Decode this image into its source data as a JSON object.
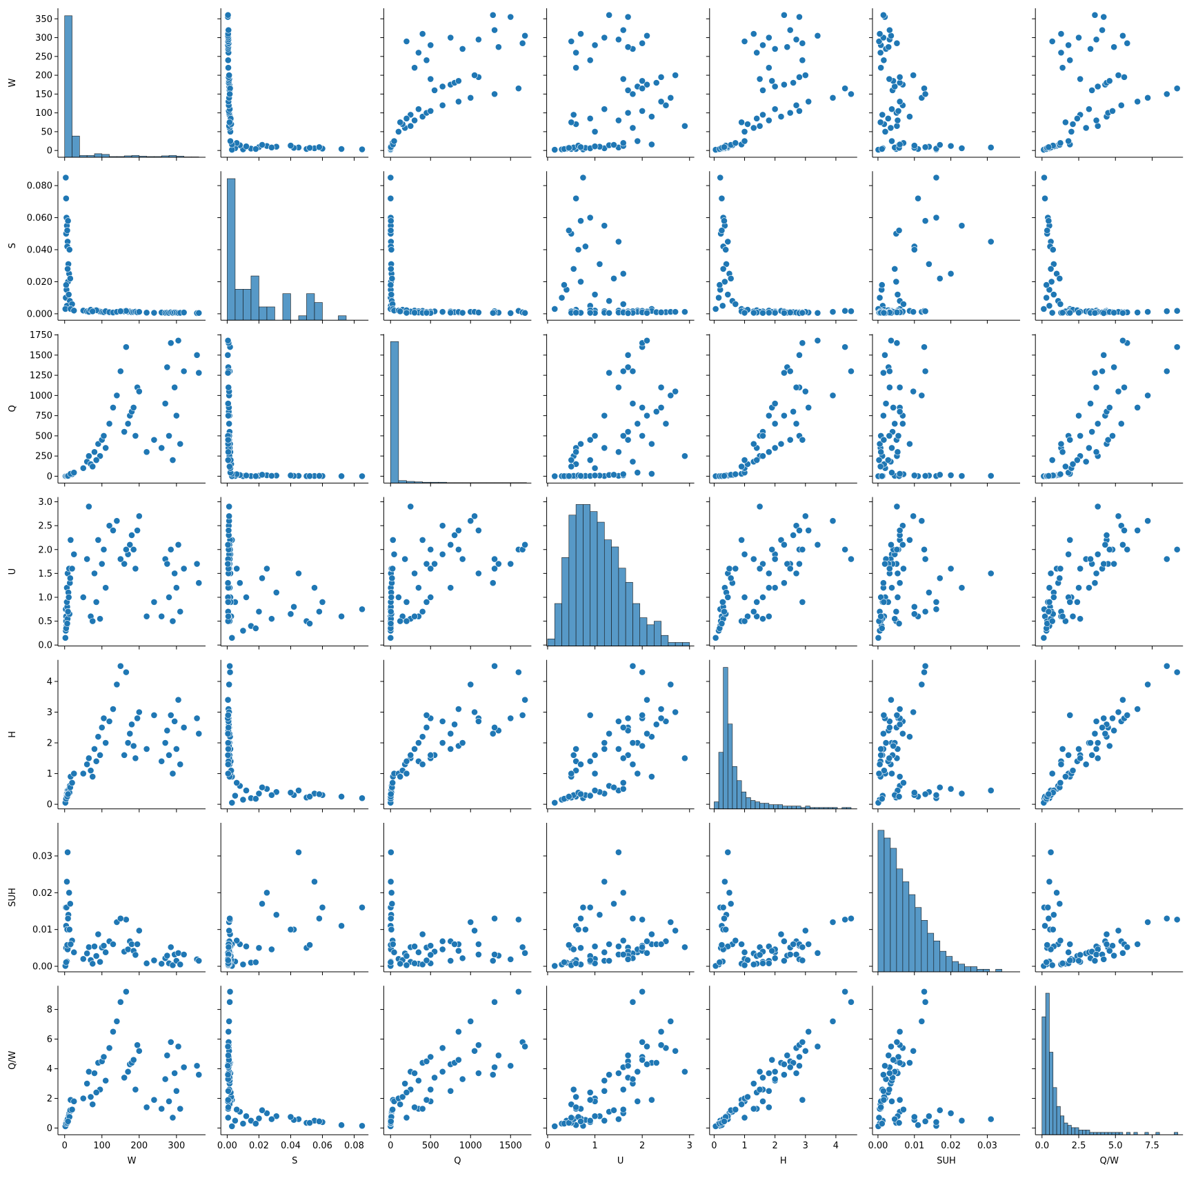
{
  "chart_data": {
    "type": "pairplot",
    "color": "#1f77b4",
    "variables": [
      {
        "name": "W",
        "lim": [
          -18,
          378
        ],
        "xticks": [
          0,
          100,
          200,
          300
        ],
        "yticks": [
          0,
          50,
          100,
          150,
          200,
          250,
          300,
          350
        ],
        "hist": {
          "bins": [
            0,
            20,
            40,
            60,
            80,
            100,
            120,
            140,
            160,
            180,
            200,
            220,
            240,
            260,
            280,
            300,
            320,
            340,
            360
          ],
          "counts": [
            400,
            60,
            5,
            5,
            10,
            8,
            2,
            2,
            4,
            5,
            3,
            2,
            2,
            4,
            5,
            3,
            1,
            1
          ]
        }
      },
      {
        "name": "S",
        "lim": [
          -0.004,
          0.089
        ],
        "xticks": [
          {
            "value": 0,
            "label": "0.00"
          },
          0.02,
          0.04,
          0.06,
          0.08
        ],
        "yticks": [
          {
            "value": 0,
            "label": "0.000"
          },
          {
            "value": 0.02,
            "label": "0.020"
          },
          {
            "value": 0.04,
            "label": "0.040"
          },
          {
            "value": 0.06,
            "label": "0.060"
          },
          {
            "value": 0.08,
            "label": "0.080"
          }
        ],
        "hist": {
          "bins": [
            0,
            0.005,
            0.01,
            0.015,
            0.02,
            0.025,
            0.03,
            0.035,
            0.04,
            0.045,
            0.05,
            0.055,
            0.06,
            0.065,
            0.07,
            0.075
          ],
          "counts": [
            32,
            7,
            7,
            10,
            3,
            3,
            0,
            6,
            0,
            1,
            6,
            4,
            0,
            0,
            1
          ]
        }
      },
      {
        "name": "Q",
        "lim": [
          -85,
          1760
        ],
        "xticks": [
          0,
          500,
          1000,
          1500
        ],
        "yticks": [
          0,
          250,
          500,
          750,
          1000,
          1250,
          1500,
          1750
        ],
        "hist": {
          "bins": [
            0,
            100,
            200,
            300,
            400,
            500,
            600,
            700,
            800,
            900,
            1000,
            1100,
            1200,
            1300,
            1400,
            1500,
            1600,
            1700
          ],
          "counts": [
            340,
            6,
            4,
            3,
            2,
            2,
            2,
            1,
            1,
            1,
            1,
            1,
            1,
            1,
            1,
            1,
            1
          ]
        }
      },
      {
        "name": "U",
        "lim": [
          -0.02,
          3.1
        ],
        "xticks": [
          0,
          1,
          2,
          3
        ],
        "yticks": [
          {
            "value": 0,
            "label": "0.0"
          },
          0.5,
          {
            "value": 1,
            "label": "1.0"
          },
          1.5,
          {
            "value": 2,
            "label": "2.0"
          },
          2.5,
          {
            "value": 3,
            "label": "3.0"
          }
        ],
        "hist": {
          "bins": [
            0,
            0.15,
            0.3,
            0.45,
            0.6,
            0.75,
            0.9,
            1.05,
            1.2,
            1.35,
            1.5,
            1.65,
            1.8,
            1.95,
            2.1,
            2.25,
            2.4,
            2.55,
            2.7,
            2.85,
            3
          ],
          "counts": [
            2,
            12,
            25,
            37,
            40,
            40,
            38,
            35,
            30,
            28,
            22,
            18,
            12,
            8,
            6,
            7,
            3,
            1,
            1,
            1
          ]
        }
      },
      {
        "name": "H",
        "lim": [
          -0.15,
          4.7
        ],
        "xticks": [
          0,
          1,
          2,
          3,
          4
        ],
        "yticks": [
          0,
          1,
          2,
          3,
          4
        ],
        "hist": {
          "bins": [
            0,
            0.15,
            0.3,
            0.45,
            0.6,
            0.75,
            0.9,
            1.05,
            1.2,
            1.35,
            1.5,
            1.65,
            1.8,
            1.95,
            2.1,
            2.25,
            2.4,
            2.55,
            2.7,
            2.85,
            3,
            3.15,
            3.3,
            3.45,
            3.6,
            3.75,
            3.9,
            4.05,
            4.2,
            4.35,
            4.5
          ],
          "counts": [
            5,
            40,
            100,
            60,
            30,
            20,
            12,
            8,
            6,
            5,
            4,
            4,
            3,
            3,
            3,
            2,
            2,
            2,
            2,
            1,
            2,
            1,
            1,
            1,
            1,
            1,
            1,
            0,
            1,
            1
          ]
        }
      },
      {
        "name": "SUH",
        "lim": [
          -0.0015,
          0.039
        ],
        "xticks": [
          {
            "value": 0,
            "label": "0.00"
          },
          0.01,
          0.02,
          0.03
        ],
        "yticks": [
          {
            "value": 0,
            "label": "0.00"
          },
          0.01,
          0.02,
          0.03
        ],
        "hist": {
          "bins": [
            0,
            0.0017,
            0.0034,
            0.0051,
            0.0068,
            0.0085,
            0.0102,
            0.0119,
            0.0136,
            0.0153,
            0.017,
            0.0187,
            0.0204,
            0.0221,
            0.0238,
            0.0255,
            0.0272,
            0.0289,
            0.0306,
            0.0323,
            0.034
          ],
          "counts": [
            55,
            52,
            48,
            40,
            35,
            30,
            25,
            20,
            15,
            12,
            8,
            6,
            4,
            3,
            2,
            2,
            1,
            1,
            0,
            1
          ]
        }
      },
      {
        "name": "Q/W",
        "lim": [
          -0.45,
          9.6
        ],
        "xticks": [
          {
            "value": 0,
            "label": "0.0"
          },
          2.5,
          {
            "value": 5,
            "label": "5.0"
          },
          7.5
        ],
        "yticks": [
          0,
          2,
          4,
          6,
          8
        ],
        "hist": {
          "bins": [
            0,
            0.25,
            0.5,
            0.75,
            1,
            1.25,
            1.5,
            1.75,
            2,
            2.25,
            2.5,
            2.75,
            3,
            3.25,
            3.5,
            3.75,
            4,
            4.25,
            4.5,
            4.75,
            5,
            5.25,
            5.5,
            5.75,
            6,
            6.25,
            6.5,
            6.75,
            7,
            7.25,
            7.5,
            7.75,
            8,
            8.25,
            8.5,
            8.75,
            9,
            9.25
          ],
          "counts": [
            50,
            60,
            35,
            20,
            12,
            8,
            5,
            4,
            3,
            3,
            2,
            2,
            2,
            1,
            1,
            1,
            1,
            1,
            1,
            1,
            1,
            1,
            0,
            1,
            0,
            1,
            0,
            0,
            1,
            0,
            0,
            1,
            0,
            0,
            0,
            0,
            1
          ]
        }
      }
    ],
    "points": [
      [
        3,
        0.085,
        0.5,
        0.75,
        0.2,
        0.016,
        0.15
      ],
      [
        4,
        0.072,
        0.8,
        0.6,
        0.25,
        0.011,
        0.2
      ],
      [
        5,
        0.06,
        2,
        0.9,
        0.3,
        0.016,
        0.4
      ],
      [
        6,
        0.055,
        3,
        1.2,
        0.35,
        0.023,
        0.5
      ],
      [
        4,
        0.05,
        1.5,
        0.5,
        0.22,
        0.005,
        0.35
      ],
      [
        8,
        0.045,
        5,
        1.5,
        0.45,
        0.031,
        0.6
      ],
      [
        7,
        0.042,
        4,
        0.8,
        0.3,
        0.01,
        0.55
      ],
      [
        10,
        0.031,
        8,
        1.1,
        0.4,
        0.014,
        0.8
      ],
      [
        12,
        0.025,
        12,
        1.6,
        0.5,
        0.02,
        1.0
      ],
      [
        9,
        0.02,
        6,
        0.7,
        0.35,
        0.005,
        0.65
      ],
      [
        5,
        0.015,
        2.5,
        0.4,
        0.2,
        0.001,
        0.5
      ],
      [
        3,
        0.01,
        1,
        0.3,
        0.15,
        0.0005,
        0.3
      ],
      [
        14,
        0.008,
        15,
        1.3,
        0.6,
        0.006,
        1.1
      ],
      [
        6,
        0.005,
        3,
        0.9,
        0.28,
        0.0013,
        0.5
      ],
      [
        2,
        0.003,
        0.3,
        0.15,
        0.05,
        0.0001,
        0.12
      ],
      [
        11,
        0.012,
        9,
        1.0,
        0.45,
        0.0054,
        0.8
      ],
      [
        8,
        0.028,
        5,
        0.55,
        0.3,
        0.0046,
        0.6
      ],
      [
        13,
        0.04,
        10,
        0.65,
        0.38,
        0.01,
        0.75
      ],
      [
        15,
        0.022,
        18,
        1.4,
        0.55,
        0.017,
        1.2
      ],
      [
        4,
        0.018,
        1.2,
        0.35,
        0.18,
        0.0011,
        0.3
      ],
      [
        20,
        0.006,
        25,
        1.6,
        0.7,
        0.007,
        1.25
      ],
      [
        7,
        0.052,
        2.5,
        0.45,
        0.25,
        0.0058,
        0.35
      ],
      [
        9,
        0.058,
        4,
        0.7,
        0.33,
        0.013,
        0.45
      ],
      [
        16,
        0.003,
        30,
        2.2,
        0.9,
        0.006,
        1.9
      ],
      [
        25,
        0.002,
        45,
        1.9,
        1.0,
        0.0038,
        1.8
      ],
      [
        50,
        0.002,
        100,
        1.0,
        1.0,
        0.002,
        2.0
      ],
      [
        60,
        0.0015,
        180,
        1.8,
        1.3,
        0.0035,
        3.0
      ],
      [
        65,
        0.0012,
        250,
        2.9,
        1.5,
        0.0052,
        3.8
      ],
      [
        70,
        0.0025,
        150,
        0.6,
        1.1,
        0.0017,
        2.1
      ],
      [
        80,
        0.002,
        300,
        1.5,
        1.8,
        0.0054,
        3.7
      ],
      [
        90,
        0.0018,
        400,
        2.2,
        2.2,
        0.0087,
        4.4
      ],
      [
        95,
        0.0014,
        250,
        0.55,
        1.6,
        0.0012,
        2.6
      ],
      [
        100,
        0.0012,
        450,
        1.7,
        2.5,
        0.0051,
        4.5
      ],
      [
        105,
        0.001,
        500,
        2.0,
        2.8,
        0.0056,
        4.8
      ],
      [
        110,
        0.0016,
        350,
        1.2,
        2.0,
        0.0038,
        3.2
      ],
      [
        120,
        0.001,
        650,
        2.5,
        2.7,
        0.0068,
        5.4
      ],
      [
        85,
        0.0022,
        200,
        0.9,
        1.4,
        0.0028,
        2.4
      ],
      [
        75,
        0.0015,
        120,
        0.5,
        0.9,
        0.0007,
        1.6
      ],
      [
        130,
        0.0008,
        850,
        2.4,
        3.1,
        0.006,
        6.5
      ],
      [
        140,
        0.0012,
        1000,
        2.6,
        3.9,
        0.012,
        7.2
      ],
      [
        160,
        0.0015,
        550,
        1.7,
        1.6,
        0.004,
        3.4
      ],
      [
        170,
        0.0012,
        650,
        1.9,
        2.0,
        0.0046,
        3.8
      ],
      [
        175,
        0.0014,
        750,
        2.1,
        2.3,
        0.0068,
        4.3
      ],
      [
        180,
        0.001,
        800,
        2.3,
        2.6,
        0.006,
        4.4
      ],
      [
        185,
        0.0011,
        850,
        2.0,
        1.9,
        0.0042,
        4.6
      ],
      [
        190,
        0.0013,
        500,
        1.6,
        1.5,
        0.0031,
        2.6
      ],
      [
        195,
        0.0009,
        1100,
        2.4,
        2.8,
        0.006,
        5.6
      ],
      [
        200,
        0.0012,
        1050,
        2.7,
        3.0,
        0.0097,
        5.2
      ],
      [
        165,
        0.0018,
        1600,
        2.0,
        4.3,
        0.0127,
        9.2
      ],
      [
        150,
        0.0016,
        1300,
        1.8,
        4.5,
        0.013,
        8.5
      ],
      [
        260,
        0.0008,
        350,
        0.6,
        1.4,
        0.0007,
        1.3
      ],
      [
        270,
        0.0006,
        900,
        1.8,
        2.0,
        0.0022,
        3.3
      ],
      [
        275,
        0.0007,
        1350,
        1.7,
        2.4,
        0.0029,
        4.9
      ],
      [
        280,
        0.0005,
        500,
        1.0,
        1.6,
        0.0008,
        1.8
      ],
      [
        285,
        0.0009,
        1650,
        2.0,
        2.9,
        0.0052,
        5.8
      ],
      [
        290,
        0.0006,
        200,
        0.5,
        1.0,
        0.0003,
        0.7
      ],
      [
        295,
        0.0008,
        1100,
        1.5,
        2.7,
        0.0032,
        3.7
      ],
      [
        300,
        0.0007,
        750,
        1.2,
        1.8,
        0.0015,
        2.5
      ],
      [
        305,
        0.0005,
        1680,
        2.1,
        3.4,
        0.0036,
        5.5
      ],
      [
        310,
        0.0006,
        400,
        0.7,
        1.3,
        0.0005,
        1.3
      ],
      [
        320,
        0.0008,
        1300,
        1.6,
        2.5,
        0.0032,
        4.1
      ],
      [
        355,
        0.0004,
        1500,
        1.7,
        2.8,
        0.0019,
        4.2
      ],
      [
        360,
        0.0005,
        1280,
        1.3,
        2.3,
        0.0015,
        3.6
      ],
      [
        220,
        0.0007,
        300,
        0.6,
        1.8,
        0.0008,
        1.4
      ],
      [
        240,
        0.0006,
        450,
        0.9,
        2.9,
        0.0016,
        1.9
      ]
    ]
  }
}
